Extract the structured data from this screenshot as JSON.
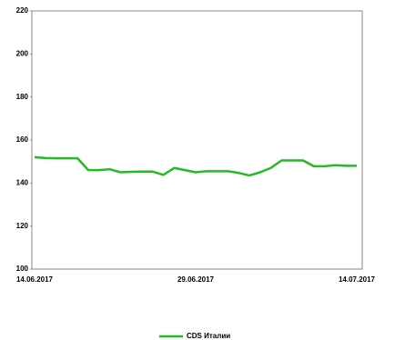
{
  "chart_data": {
    "type": "line",
    "categories": [
      "14.06.2017",
      null,
      null,
      null,
      null,
      null,
      null,
      null,
      null,
      null,
      null,
      null,
      null,
      null,
      null,
      "29.06.2017",
      null,
      null,
      null,
      null,
      null,
      null,
      null,
      null,
      null,
      null,
      null,
      null,
      null,
      null,
      "14.07.2017"
    ],
    "series": [
      {
        "name": "CDS Италии",
        "color": "#22bb22",
        "values": [
          152,
          151.6,
          151.5,
          151.5,
          151.5,
          146,
          146,
          146.4,
          145,
          145.2,
          145.3,
          145.3,
          143.8,
          147,
          146,
          145,
          145.5,
          145.5,
          145.5,
          144.7,
          143.5,
          145,
          147,
          150.5,
          150.5,
          150.5,
          147.8,
          147.8,
          148.3,
          148,
          148
        ]
      }
    ],
    "ylim": [
      100,
      220
    ],
    "yticks": [
      100,
      120,
      140,
      160,
      180,
      200,
      220
    ],
    "grid": false,
    "legend": "bottom"
  }
}
